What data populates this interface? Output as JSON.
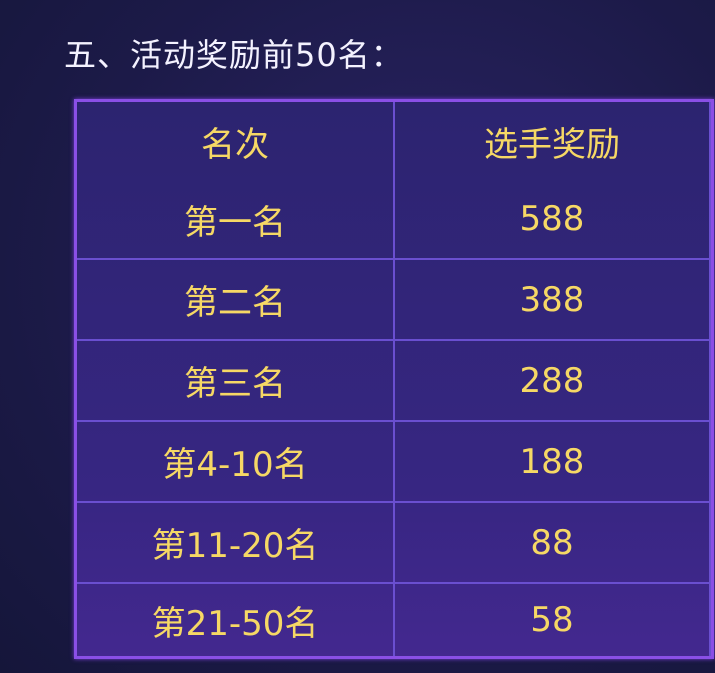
{
  "title": "五、活动奖励前50名：",
  "table": {
    "headers": [
      "名次",
      "选手奖励"
    ],
    "rows": [
      {
        "rank": "第一名",
        "reward": "588"
      },
      {
        "rank": "第二名",
        "reward": "388"
      },
      {
        "rank": "第三名",
        "reward": "288"
      },
      {
        "rank": "第4-10名",
        "reward": "188"
      },
      {
        "rank": "第11-20名",
        "reward": "88"
      },
      {
        "rank": "第21-50名",
        "reward": "58"
      }
    ]
  },
  "colors": {
    "text": "#f6d865",
    "border": "#8a4fe6",
    "background": "#1c1a48"
  }
}
